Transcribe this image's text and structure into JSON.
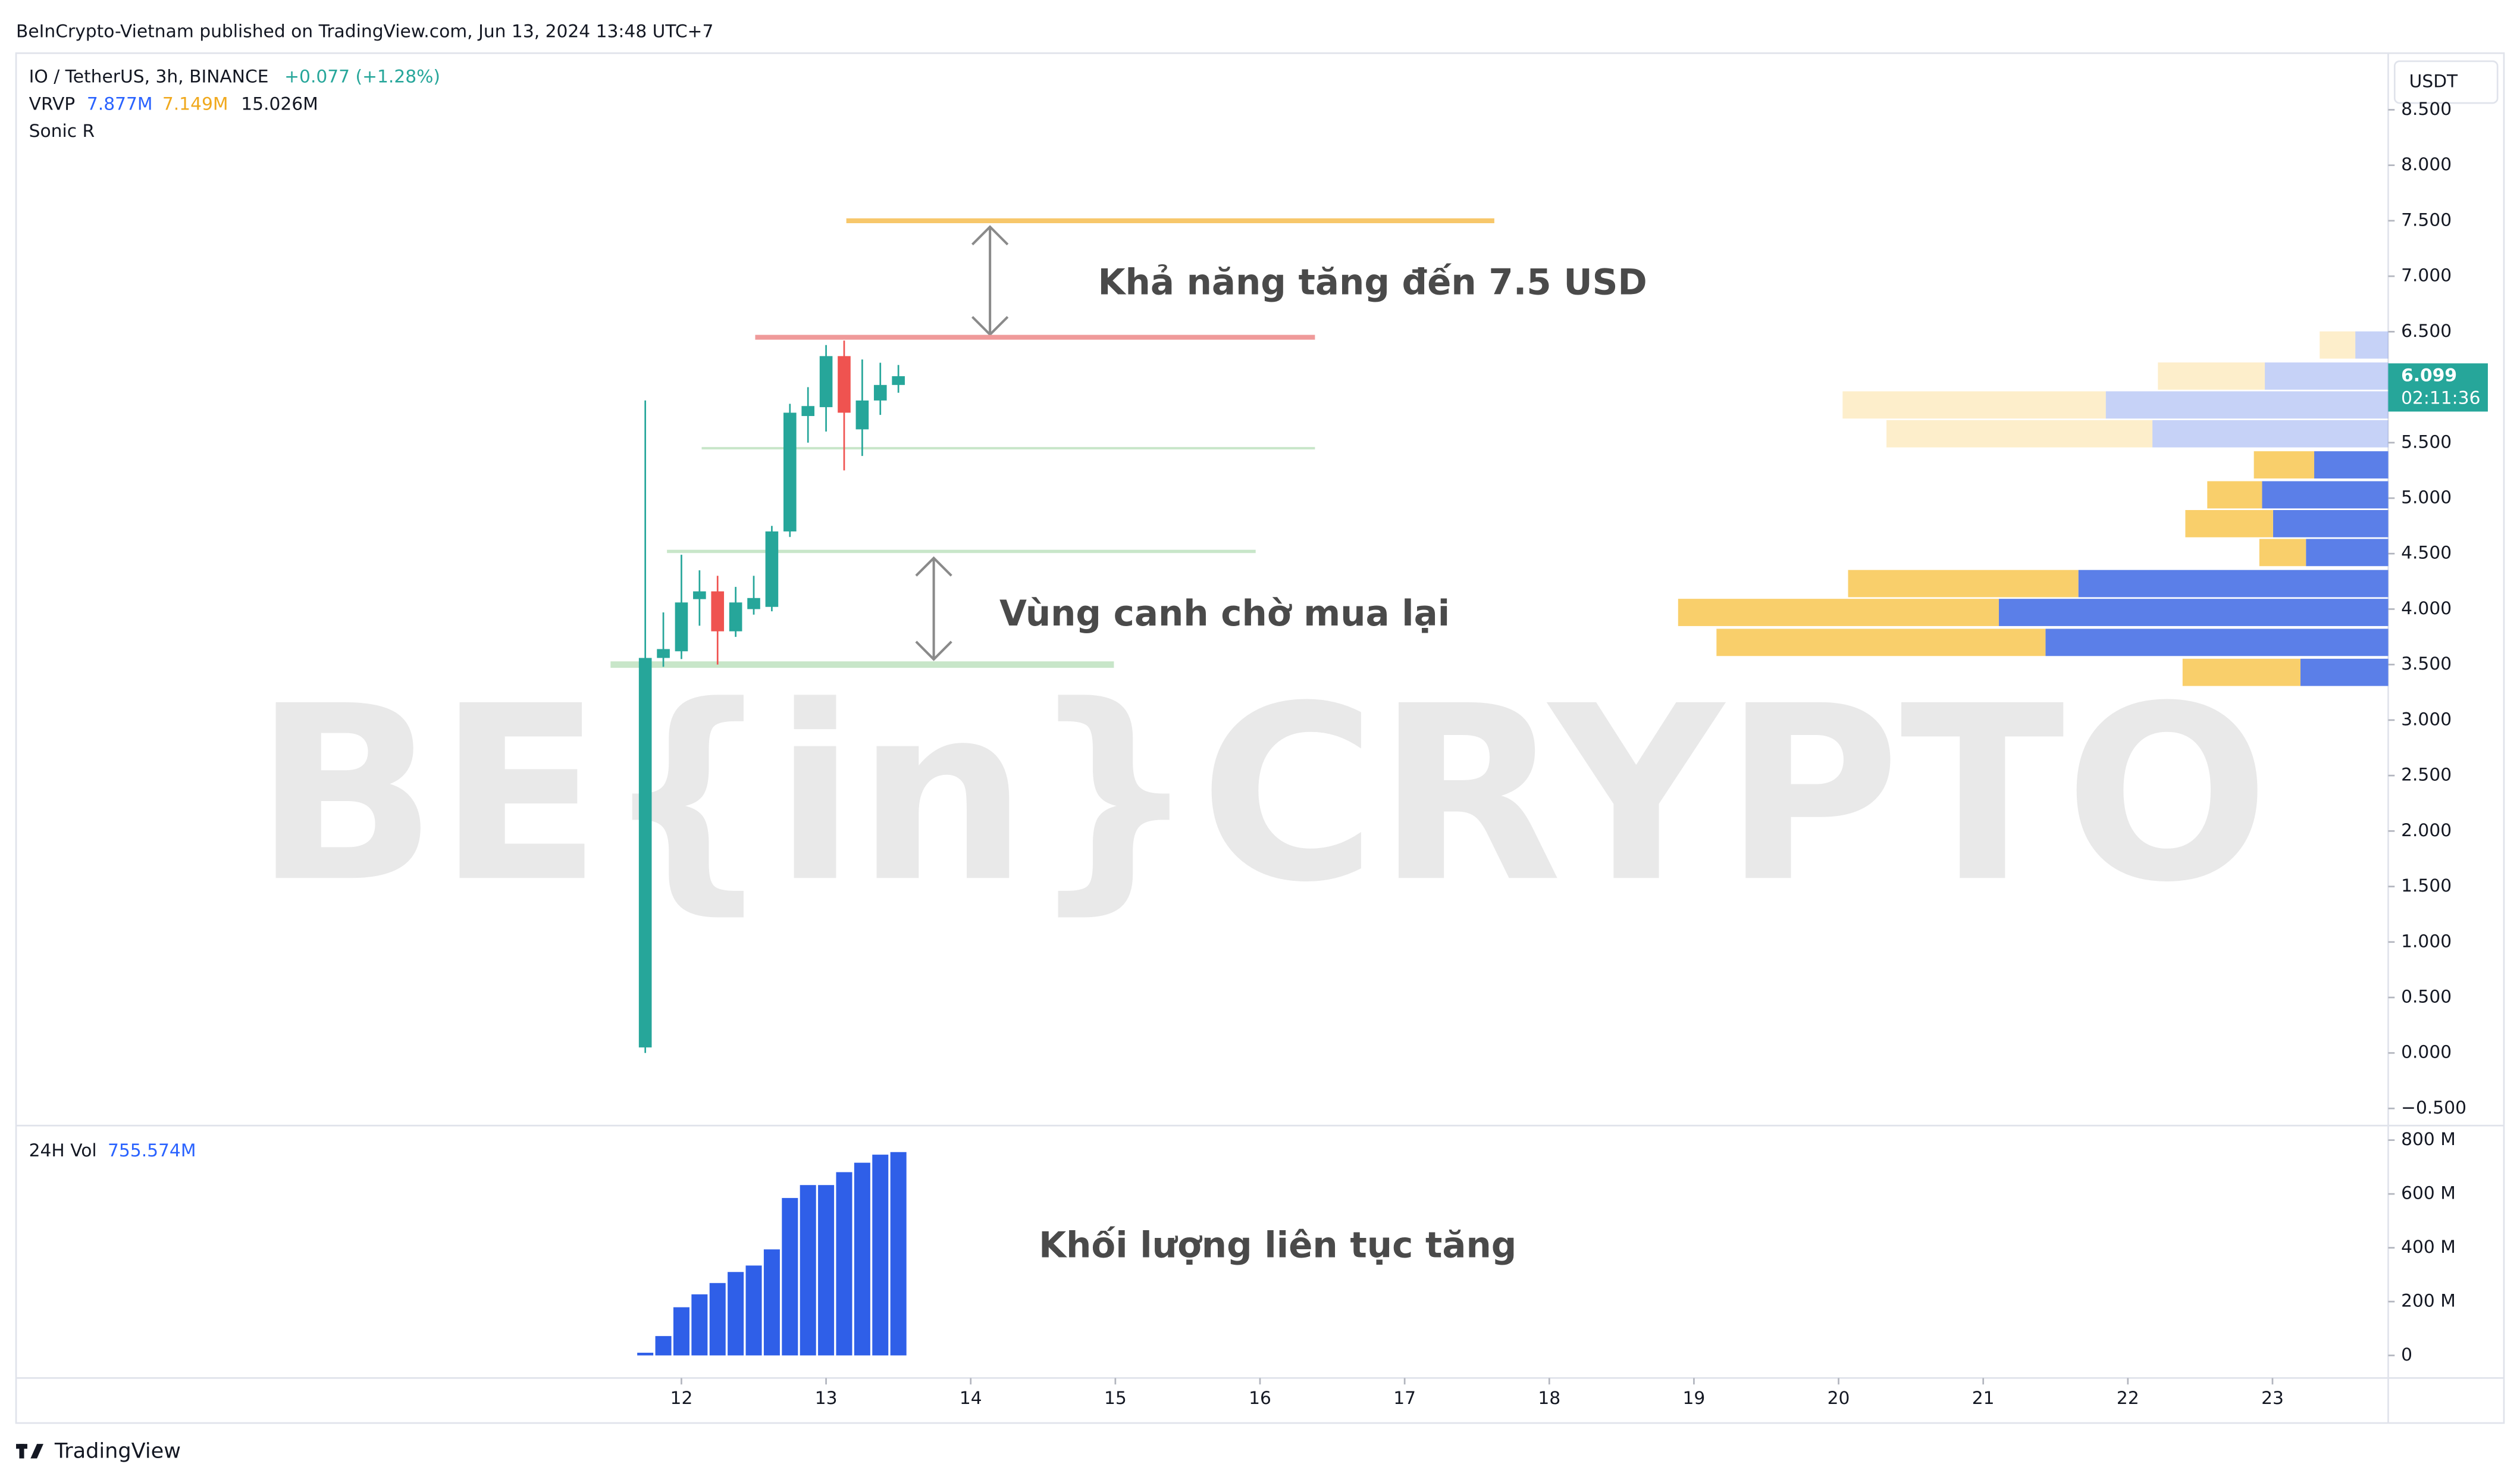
{
  "header": {
    "published": "BeInCrypto-Vietnam published on TradingView.com, Jun 13, 2024 13:48 UTC+7",
    "brand": "TradingView",
    "watermark": "BE{in}CRYPTO"
  },
  "chart_data": [
    {
      "type": "candlestick",
      "symbol": "IO / TetherUS, 3h, BINANCE",
      "change": "+0.077 (+1.28%)",
      "indicator": "VRVP",
      "indicator_values": [
        "7.877M",
        "7.149M",
        "15.026M"
      ],
      "indicator2": "Sonic R",
      "currency": "USDT",
      "last_price": 6.099,
      "countdown": "02:11:36",
      "x": [
        11.75,
        11.875,
        12,
        12.125,
        12.25,
        12.375,
        12.5,
        12.625,
        12.75,
        12.875,
        13,
        13.125,
        13.25,
        13.375,
        13.5
      ],
      "open": [
        0.05,
        3.56,
        3.62,
        4.09,
        4.16,
        3.8,
        4.0,
        4.02,
        4.7,
        5.74,
        5.82,
        6.28,
        5.62,
        5.88,
        6.02
      ],
      "high": [
        5.88,
        3.97,
        4.49,
        4.35,
        4.3,
        4.2,
        4.3,
        4.75,
        5.85,
        6.0,
        6.38,
        6.42,
        6.25,
        6.22,
        6.2
      ],
      "low": [
        0.0,
        3.48,
        3.55,
        3.85,
        3.5,
        3.75,
        3.95,
        3.98,
        4.65,
        5.5,
        5.6,
        5.25,
        5.38,
        5.75,
        5.95
      ],
      "close": [
        3.56,
        3.64,
        4.06,
        4.16,
        3.8,
        4.06,
        4.1,
        4.7,
        5.77,
        5.83,
        6.28,
        5.77,
        5.88,
        6.02,
        6.099
      ],
      "up_color": "#26a69a",
      "down_color": "#ef5350",
      "xlim": [
        7.4,
        23.8
      ],
      "xticks": [
        12,
        13,
        14,
        15,
        16,
        17,
        18,
        19,
        20,
        21,
        22,
        23
      ],
      "ylim": [
        -0.64,
        9.01
      ],
      "yticks": [
        {
          "value": 8.5,
          "label": "8.500"
        },
        {
          "value": 8,
          "label": "8.000"
        },
        {
          "value": 7.5,
          "label": "7.500"
        },
        {
          "value": 7,
          "label": "7.000"
        },
        {
          "value": 6.5,
          "label": "6.500"
        },
        {
          "value": 6,
          "label": "6.000"
        },
        {
          "value": 5.5,
          "label": "5.500"
        },
        {
          "value": 5,
          "label": "5.000"
        },
        {
          "value": 4.5,
          "label": "4.500"
        },
        {
          "value": 4,
          "label": "4.000"
        },
        {
          "value": 3.5,
          "label": "3.500"
        },
        {
          "value": 3,
          "label": "3.000"
        },
        {
          "value": 2.5,
          "label": "2.500"
        },
        {
          "value": 2,
          "label": "2.000"
        },
        {
          "value": 1.5,
          "label": "1.500"
        },
        {
          "value": 1,
          "label": "1.000"
        },
        {
          "value": 0.5,
          "label": "0.500"
        },
        {
          "value": 0,
          "label": "0.000"
        },
        {
          "value": -0.5,
          "label": "−0.500"
        }
      ],
      "levels": [
        {
          "price": 7.5,
          "x0": 13.14,
          "x1": 17.62,
          "color": "#f7c76b",
          "width": 3
        },
        {
          "price": 6.45,
          "x0": 12.51,
          "x1": 16.38,
          "color": "#ef9a9a",
          "width": 3
        },
        {
          "price": 5.45,
          "x0": 12.14,
          "x1": 16.38,
          "color": "#c8e6c9",
          "width": 1.5
        },
        {
          "price": 4.52,
          "x0": 11.9,
          "x1": 15.97,
          "color": "#c8e6c9",
          "width": 2
        },
        {
          "price": 3.5,
          "x0": 11.51,
          "x1": 14.99,
          "color": "#c8e6c9",
          "width": 4
        }
      ],
      "profile": {
        "price": [
          3.43,
          3.7,
          3.97,
          4.23,
          4.51,
          4.77,
          5.03,
          5.3,
          5.58,
          5.84,
          6.1,
          6.38
        ],
        "up": [
          0.32,
          1.25,
          1.42,
          1.13,
          0.3,
          0.42,
          0.46,
          0.27,
          0.86,
          1.03,
          0.45,
          0.12
        ],
        "down": [
          0.43,
          1.2,
          1.17,
          0.84,
          0.17,
          0.32,
          0.2,
          0.22,
          0.97,
          0.96,
          0.39,
          0.13
        ],
        "row_height": 0.26,
        "value_area": [
          3.3,
          5.45
        ],
        "up_color": "#5b7fe8",
        "down_color": "#f9cf6b"
      },
      "annotations": [
        "Khả năng tăng đến 7.5 USD",
        "Vùng canh chờ mua lại"
      ]
    },
    {
      "type": "bar",
      "title": "24H Vol",
      "last_label": "755.574M",
      "color": "#2f5fe8",
      "x": [
        11.75,
        11.875,
        12,
        12.125,
        12.25,
        12.375,
        12.5,
        12.625,
        12.75,
        12.875,
        13,
        13.125,
        13.25,
        13.375,
        13.5
      ],
      "values": [
        10,
        72,
        179,
        227,
        269,
        310,
        334,
        394,
        585,
        633,
        633,
        681,
        716,
        746,
        755.574
      ],
      "xlim": [
        7.4,
        23.8
      ],
      "ylim": [
        -78,
        848
      ],
      "yticks": [
        {
          "value": 800,
          "label": "800 M"
        },
        {
          "value": 600,
          "label": "600 M"
        },
        {
          "value": 400,
          "label": "400 M"
        },
        {
          "value": 200,
          "label": "200 M"
        },
        0
      ],
      "annotations": [
        "Khối lượng liên tục tăng"
      ]
    }
  ]
}
